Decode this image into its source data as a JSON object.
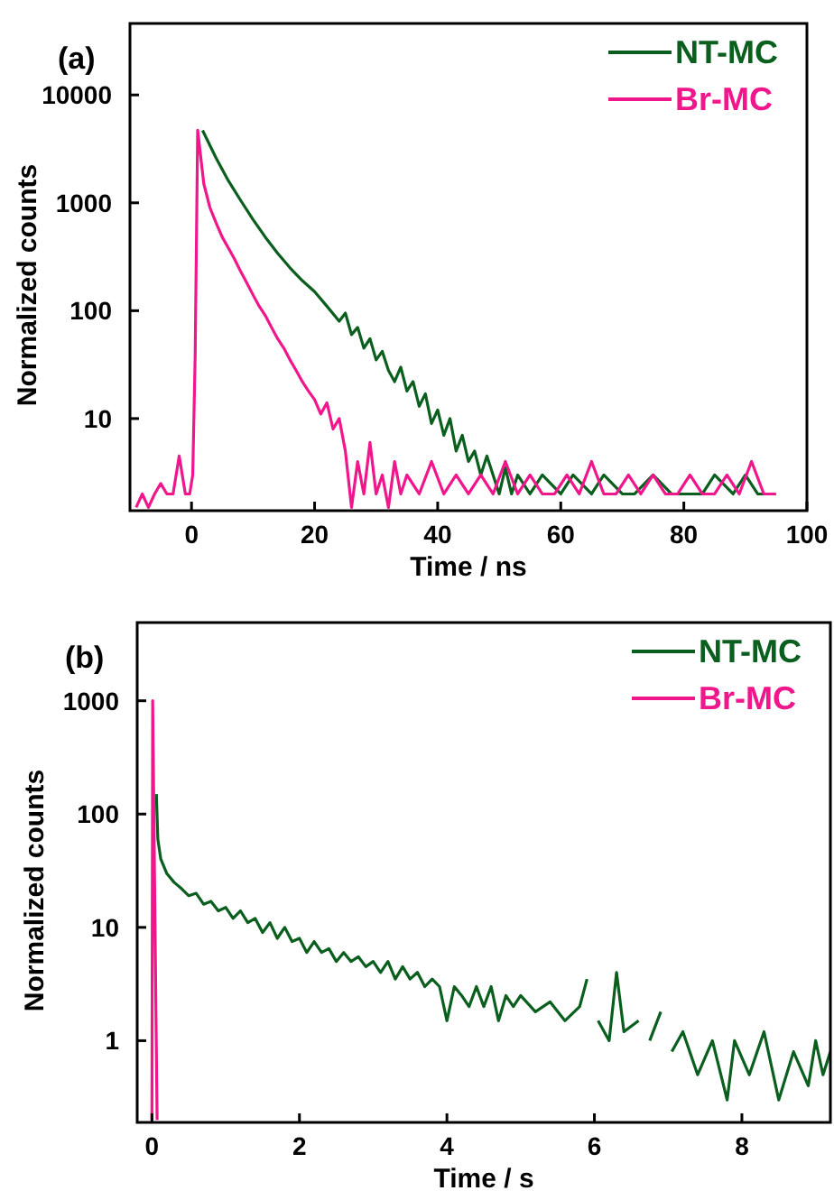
{
  "chart_data": [
    {
      "type": "line",
      "title": "(a)",
      "xlabel": "Time / ns",
      "ylabel": "Normalized counts",
      "log": "y",
      "xlim": [
        -10,
        100
      ],
      "ylim": [
        1.4,
        46000
      ],
      "xticks": [
        0,
        20,
        40,
        60,
        80,
        100
      ],
      "yticks": [
        10,
        100,
        1000,
        10000
      ],
      "legend": "top right",
      "grid": false,
      "marker": "none",
      "line_style": "solid",
      "series": [
        {
          "name": "NT-MC",
          "color": "#0a5e1e",
          "x": [
            1.8,
            4,
            6,
            8,
            10,
            12,
            14,
            16,
            18,
            20,
            22,
            24,
            25,
            26,
            27,
            28,
            29,
            30,
            31,
            32,
            33,
            34,
            35,
            36,
            37,
            38,
            39,
            40,
            41,
            42,
            43,
            44,
            45,
            46,
            47,
            48,
            49,
            50,
            51,
            52,
            53,
            55,
            57,
            60,
            62,
            65,
            67,
            70,
            72,
            75,
            78,
            80,
            83,
            85,
            88,
            90,
            92,
            93
          ],
          "values": [
            4700,
            2600,
            1600,
            1050,
            700,
            480,
            340,
            250,
            190,
            150,
            110,
            80,
            95,
            60,
            70,
            45,
            55,
            35,
            42,
            28,
            22,
            30,
            18,
            22,
            13,
            17,
            9,
            12,
            7,
            10,
            5,
            7,
            4,
            5,
            3,
            4.5,
            3,
            2,
            3.5,
            2,
            3,
            2,
            3,
            2,
            3,
            2,
            3,
            2,
            2,
            3,
            2,
            2,
            2,
            3,
            2,
            3,
            2,
            2
          ]
        },
        {
          "name": "Br-MC",
          "color": "#f0168c",
          "x": [
            -9,
            -8,
            -7,
            -6,
            -5,
            -4,
            -3,
            -2,
            -1,
            -0.3,
            0.2,
            0.6,
            1,
            2,
            3,
            4,
            5,
            6,
            7,
            8,
            9,
            10,
            11,
            12,
            13,
            14,
            15,
            16,
            17,
            18,
            19,
            20,
            21,
            22,
            23,
            24,
            25,
            26,
            27,
            28,
            29,
            30,
            31,
            32,
            33,
            34,
            35,
            37,
            39,
            41,
            43,
            45,
            47,
            49,
            51,
            53,
            55,
            57,
            59,
            61,
            63,
            65,
            67,
            69,
            71,
            73,
            75,
            77,
            79,
            81,
            83,
            85,
            87,
            89,
            91,
            93,
            95
          ],
          "values": [
            1.5,
            2,
            1.5,
            2,
            2.5,
            2,
            2,
            4.5,
            2,
            2,
            3,
            40,
            4700,
            1500,
            900,
            650,
            480,
            380,
            300,
            230,
            180,
            140,
            110,
            90,
            70,
            55,
            45,
            35,
            28,
            22,
            18,
            15,
            11,
            14,
            8,
            10,
            5,
            1.5,
            4,
            2,
            6,
            2,
            3,
            1.5,
            4,
            2,
            3,
            2,
            4,
            2,
            3,
            2,
            3,
            2,
            4,
            2,
            3,
            2,
            2,
            3,
            2,
            4,
            2,
            2,
            3,
            2,
            3,
            2,
            2,
            3,
            2,
            2,
            3,
            2,
            4,
            2,
            2
          ]
        }
      ]
    },
    {
      "type": "line",
      "title": "(b)",
      "xlabel": "Time / s",
      "ylabel": "Normalized counts",
      "log": "y",
      "xlim": [
        -0.2,
        9.2
      ],
      "ylim": [
        0.19,
        4900
      ],
      "xticks": [
        0,
        2,
        4,
        6,
        8
      ],
      "yticks": [
        1,
        10,
        100,
        1000
      ],
      "legend": "top right",
      "grid": false,
      "marker": "none",
      "line_style": "solid",
      "series": [
        {
          "name": "NT-MC",
          "color": "#0a5e1e",
          "x": [
            0.06,
            0.08,
            0.12,
            0.2,
            0.3,
            0.4,
            0.5,
            0.6,
            0.7,
            0.8,
            0.9,
            1.0,
            1.1,
            1.2,
            1.3,
            1.4,
            1.5,
            1.6,
            1.7,
            1.8,
            1.9,
            2.0,
            2.1,
            2.2,
            2.3,
            2.4,
            2.5,
            2.6,
            2.7,
            2.8,
            2.9,
            3.0,
            3.1,
            3.2,
            3.3,
            3.4,
            3.5,
            3.6,
            3.7,
            3.8,
            3.9,
            4.0,
            4.1,
            4.2,
            4.3,
            4.4,
            4.5,
            4.6,
            4.7,
            4.8,
            4.9,
            5.0,
            5.2,
            5.4,
            5.6,
            5.8,
            5.9,
            6.0,
            6.05,
            6.2,
            6.3,
            6.4,
            6.6,
            6.7,
            6.75,
            6.9,
            7.0,
            7.05,
            7.2,
            7.4,
            7.6,
            7.8,
            7.9,
            8.1,
            8.3,
            8.5,
            8.7,
            8.9,
            9.0,
            9.1,
            9.2
          ],
          "values": [
            150,
            60,
            40,
            30,
            25,
            22,
            19,
            20,
            16,
            17,
            14,
            15,
            12,
            14,
            11,
            12,
            9,
            11,
            8,
            10,
            7.5,
            8,
            6,
            7.5,
            6,
            6.5,
            5,
            6,
            5,
            5.5,
            4.5,
            5,
            4,
            5,
            3.5,
            4.5,
            3.5,
            4,
            3,
            3.5,
            3,
            1.5,
            3,
            2.5,
            2,
            3,
            2,
            3,
            1.5,
            2.5,
            2,
            2.5,
            1.8,
            2.2,
            1.5,
            2,
            3.5,
            null,
            1.5,
            1,
            4,
            1.2,
            1.5,
            null,
            1,
            1.8,
            null,
            0.8,
            1.2,
            0.5,
            1,
            0.3,
            1,
            0.5,
            1.2,
            0.3,
            0.8,
            0.4,
            1,
            0.5,
            0.8
          ]
        },
        {
          "name": "Br-MC",
          "color": "#f0168c",
          "x": [
            0,
            0.01,
            0.07
          ],
          "values": [
            0.2,
            1000,
            0.2
          ]
        }
      ]
    }
  ]
}
